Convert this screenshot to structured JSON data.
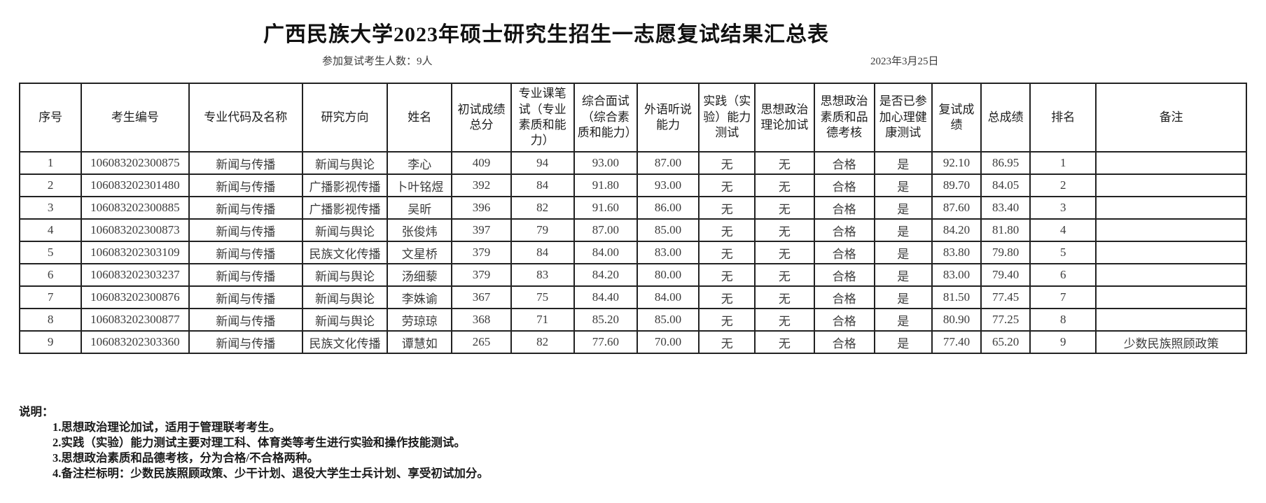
{
  "title": "广西民族大学2023年硕士研究生招生一志愿复试结果汇总表",
  "meta": {
    "participants": "参加复试考生人数：9人",
    "date": "2023年3月25日"
  },
  "table": {
    "headers": [
      "序号",
      "考生编号",
      "专业代码及名称",
      "研究方向",
      "姓名",
      "初试成绩总分",
      "专业课笔试（专业素质和能力）",
      "综合面试（综合素质和能力）",
      "外语听说能力",
      "实践（实验）能力测试",
      "思想政治理论加试",
      "思想政治素质和品德考核",
      "是否已参加心理健康测试",
      "复试成绩",
      "总成绩",
      "排名",
      "备注"
    ],
    "rows": [
      [
        "1",
        "106083202300875",
        "新闻与传播",
        "新闻与舆论",
        "李心",
        "409",
        "94",
        "93.00",
        "87.00",
        "无",
        "无",
        "合格",
        "是",
        "92.10",
        "86.95",
        "1",
        ""
      ],
      [
        "2",
        "106083202301480",
        "新闻与传播",
        "广播影视传播",
        "卜叶铭煜",
        "392",
        "84",
        "91.80",
        "93.00",
        "无",
        "无",
        "合格",
        "是",
        "89.70",
        "84.05",
        "2",
        ""
      ],
      [
        "3",
        "106083202300885",
        "新闻与传播",
        "广播影视传播",
        "吴昕",
        "396",
        "82",
        "91.60",
        "86.00",
        "无",
        "无",
        "合格",
        "是",
        "87.60",
        "83.40",
        "3",
        ""
      ],
      [
        "4",
        "106083202300873",
        "新闻与传播",
        "新闻与舆论",
        "张俊炜",
        "397",
        "79",
        "87.00",
        "85.00",
        "无",
        "无",
        "合格",
        "是",
        "84.20",
        "81.80",
        "4",
        ""
      ],
      [
        "5",
        "106083202303109",
        "新闻与传播",
        "民族文化传播",
        "文星桥",
        "379",
        "84",
        "84.00",
        "83.00",
        "无",
        "无",
        "合格",
        "是",
        "83.80",
        "79.80",
        "5",
        ""
      ],
      [
        "6",
        "106083202303237",
        "新闻与传播",
        "新闻与舆论",
        "汤细藜",
        "379",
        "83",
        "84.20",
        "80.00",
        "无",
        "无",
        "合格",
        "是",
        "83.00",
        "79.40",
        "6",
        ""
      ],
      [
        "7",
        "106083202300876",
        "新闻与传播",
        "新闻与舆论",
        "李姝谕",
        "367",
        "75",
        "84.40",
        "84.00",
        "无",
        "无",
        "合格",
        "是",
        "81.50",
        "77.45",
        "7",
        ""
      ],
      [
        "8",
        "106083202300877",
        "新闻与传播",
        "新闻与舆论",
        "劳琼琼",
        "368",
        "71",
        "85.20",
        "85.00",
        "无",
        "无",
        "合格",
        "是",
        "80.90",
        "77.25",
        "8",
        ""
      ],
      [
        "9",
        "106083202303360",
        "新闻与传播",
        "民族文化传播",
        "谭慧如",
        "265",
        "82",
        "77.60",
        "70.00",
        "无",
        "无",
        "合格",
        "是",
        "77.40",
        "65.20",
        "9",
        "少数民族照顾政策"
      ]
    ]
  },
  "notes": {
    "label": "说明：",
    "items": [
      "1.思想政治理论加试，适用于管理联考考生。",
      "2.实践（实验）能力测试主要对理工科、体育类等考生进行实验和操作技能测试。",
      "3.思想政治素质和品德考核，分为合格/不合格两种。",
      "4.备注栏标明：少数民族照顾政策、少干计划、退役大学生士兵计划、享受初试加分。"
    ]
  }
}
